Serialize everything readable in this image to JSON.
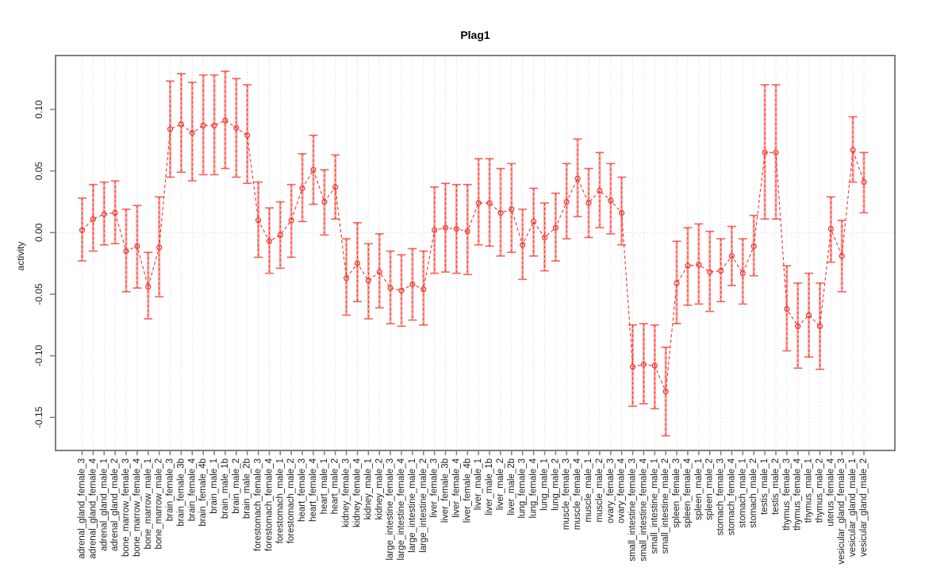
{
  "chart_data": {
    "type": "line",
    "title": "Plag1",
    "ylabel": "activity",
    "xlabel": "",
    "ylim": [
      -0.17,
      0.135
    ],
    "grid": "vertical-dotted-per-category, dotted zero line",
    "legend": "none",
    "marker": "open-circle",
    "line_style": "dashed",
    "colors": {
      "series": "#ee352e",
      "error_bar": "#ffa3a0",
      "error_cap": "#f4625a",
      "grid": "#d2d2d2",
      "zero_line": "#dccaca",
      "box": "#7e7e7e"
    },
    "yticks": [
      {
        "v": 0.1,
        "label": "0.10"
      },
      {
        "v": 0.05,
        "label": "0.05"
      },
      {
        "v": 0.0,
        "label": "0.00"
      },
      {
        "v": -0.05,
        "label": "-0.05"
      },
      {
        "v": -0.1,
        "label": "-0.10"
      },
      {
        "v": -0.15,
        "label": "-0.15"
      }
    ],
    "categories": [
      "adrenal_gland_female_3",
      "adrenal_gland_female_4",
      "adrenal_gland_male_1",
      "adrenal_gland_male_2",
      "bone_marrow_female_3",
      "bone_marrow_female_4",
      "bone_marrow_male_1",
      "bone_marrow_male_2",
      "brain_female_3",
      "brain_female_3b",
      "brain_female_4",
      "brain_female_4b",
      "brain_male_1",
      "brain_male_1b",
      "brain_male_2",
      "brain_male_2b",
      "forestomach_female_3",
      "forestomach_female_4",
      "forestomach_male_1",
      "forestomach_male_2",
      "heart_female_3",
      "heart_female_4",
      "heart_male_1",
      "heart_male_2",
      "kidney_female_3",
      "kidney_female_4",
      "kidney_male_1",
      "kidney_male_2",
      "large_intestine_female_3",
      "large_intestine_female_4",
      "large_intestine_male_1",
      "large_intestine_male_2",
      "liver_female_3",
      "liver_female_3b",
      "liver_female_4",
      "liver_female_4b",
      "liver_male_1",
      "liver_male_1b",
      "liver_male_2",
      "liver_male_2b",
      "lung_female_3",
      "lung_female_4",
      "lung_male_1",
      "lung_male_2",
      "muscle_female_3",
      "muscle_female_4",
      "muscle_male_1",
      "muscle_male_2",
      "ovary_female_3",
      "ovary_female_4",
      "small_intestine_female_3",
      "small_intestine_female_4",
      "small_intestine_male_1",
      "small_intestine_male_2",
      "spleen_female_3",
      "spleen_female_4",
      "spleen_male_1",
      "spleen_male_2",
      "stomach_female_3",
      "stomach_female_4",
      "stomach_male_1",
      "stomach_male_2",
      "testis_male_1",
      "testis_male_2",
      "thymus_female_3",
      "thymus_female_4",
      "thymus_male_1",
      "thymus_male_2",
      "uterus_female_4",
      "vesicular_gland_female_3",
      "vesicular_gland_male_1",
      "vesicular_gland_male_2"
    ],
    "values": [
      0.002,
      0.011,
      0.015,
      0.016,
      -0.015,
      -0.011,
      -0.044,
      -0.012,
      0.084,
      0.088,
      0.081,
      0.087,
      0.087,
      0.091,
      0.085,
      0.079,
      0.01,
      -0.007,
      -0.002,
      0.01,
      0.036,
      0.051,
      0.025,
      0.037,
      -0.037,
      -0.025,
      -0.039,
      -0.032,
      -0.045,
      -0.047,
      -0.042,
      -0.046,
      0.002,
      0.004,
      0.003,
      0.001,
      0.024,
      0.024,
      0.016,
      0.019,
      -0.01,
      0.009,
      -0.004,
      0.004,
      0.025,
      0.044,
      0.024,
      0.034,
      0.026,
      0.016,
      -0.109,
      -0.107,
      -0.108,
      -0.129,
      -0.041,
      -0.027,
      -0.026,
      -0.032,
      -0.031,
      -0.019,
      -0.033,
      -0.011,
      0.065,
      0.065,
      -0.062,
      -0.076,
      -0.067,
      -0.076,
      0.003,
      -0.019,
      0.067,
      0.041
    ],
    "ci_lo": [
      -0.023,
      -0.015,
      -0.01,
      -0.009,
      -0.048,
      -0.045,
      -0.07,
      -0.052,
      0.045,
      0.049,
      0.042,
      0.047,
      0.047,
      0.052,
      0.045,
      0.04,
      -0.02,
      -0.033,
      -0.029,
      -0.02,
      0.009,
      0.023,
      -0.002,
      0.011,
      -0.067,
      -0.056,
      -0.07,
      -0.061,
      -0.074,
      -0.076,
      -0.071,
      -0.075,
      -0.033,
      -0.032,
      -0.033,
      -0.034,
      -0.01,
      -0.011,
      -0.019,
      -0.016,
      -0.038,
      -0.019,
      -0.031,
      -0.023,
      -0.005,
      0.013,
      -0.004,
      0.004,
      -0.001,
      -0.01,
      -0.141,
      -0.139,
      -0.143,
      -0.165,
      -0.074,
      -0.059,
      -0.058,
      -0.064,
      -0.056,
      -0.043,
      -0.058,
      -0.035,
      0.011,
      0.011,
      -0.096,
      -0.11,
      -0.101,
      -0.111,
      -0.024,
      -0.048,
      0.041,
      0.016
    ],
    "ci_hi": [
      0.028,
      0.039,
      0.041,
      0.042,
      0.019,
      0.022,
      -0.016,
      0.029,
      0.123,
      0.129,
      0.122,
      0.128,
      0.128,
      0.131,
      0.125,
      0.12,
      0.041,
      0.02,
      0.025,
      0.039,
      0.064,
      0.079,
      0.051,
      0.063,
      -0.005,
      0.008,
      -0.009,
      -0.001,
      -0.015,
      -0.018,
      -0.013,
      -0.015,
      0.037,
      0.04,
      0.039,
      0.039,
      0.06,
      0.06,
      0.052,
      0.056,
      0.019,
      0.036,
      0.024,
      0.032,
      0.056,
      0.076,
      0.052,
      0.065,
      0.056,
      0.045,
      -0.075,
      -0.074,
      -0.075,
      -0.093,
      -0.007,
      0.004,
      0.007,
      0.001,
      -0.005,
      0.005,
      -0.005,
      0.014,
      0.12,
      0.12,
      -0.027,
      -0.041,
      -0.033,
      -0.041,
      0.029,
      0.01,
      0.094,
      0.065
    ]
  }
}
